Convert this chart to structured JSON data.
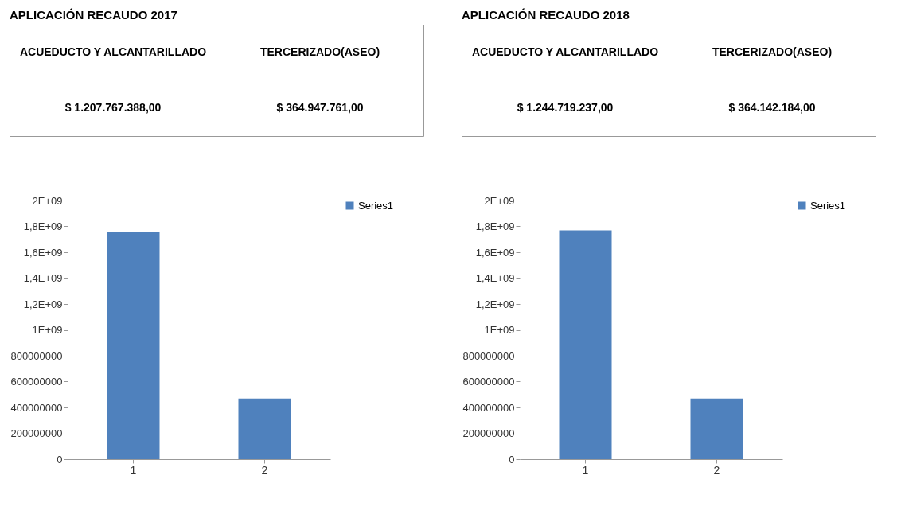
{
  "chart_data": [
    {
      "type": "other",
      "title": "APLICACIÓN RECAUDO 2017",
      "annotations": [
        "ACUEDUCTO Y ALCANTARILLADO",
        "TERCERIZADO(ASEO)",
        "$ 1.207.767.388,00",
        "$ 364.947.761,00"
      ]
    },
    {
      "type": "other",
      "title": "APLICACIÓN RECAUDO 2018",
      "annotations": [
        "ACUEDUCTO Y ALCANTARILLADO",
        "TERCERIZADO(ASEO)",
        "$ 1.244.719.237,00",
        "$ 364.142.184,00"
      ]
    },
    {
      "type": "bar",
      "categories": [
        "1",
        "2"
      ],
      "series": [
        {
          "name": "Series1",
          "color": "#4f81bd",
          "values": [
            1760000000.0,
            470000000.0
          ]
        }
      ],
      "ylim": [
        0,
        2000000000.0
      ],
      "yticks": [
        0,
        200000000,
        400000000,
        600000000,
        800000000,
        {
          "value": 1000000000.0,
          "label": "1E+09"
        },
        {
          "value": 1200000000.0,
          "label": "1,2E+09"
        },
        {
          "value": 1400000000.0,
          "label": "1,4E+09"
        },
        {
          "value": 1600000000.0,
          "label": "1,6E+09"
        },
        {
          "value": 1800000000.0,
          "label": "1,8E+09"
        },
        {
          "value": 2000000000.0,
          "label": "2E+09"
        }
      ],
      "grid": false,
      "legend": "right"
    },
    {
      "type": "bar",
      "categories": [
        "1",
        "2"
      ],
      "series": [
        {
          "name": "Series1",
          "color": "#4f81bd",
          "values": [
            1770000000.0,
            470000000.0
          ]
        }
      ],
      "ylim": [
        0,
        2000000000.0
      ],
      "yticks": [
        0,
        200000000,
        400000000,
        600000000,
        800000000,
        {
          "value": 1000000000.0,
          "label": "1E+09"
        },
        {
          "value": 1200000000.0,
          "label": "1,2E+09"
        },
        {
          "value": 1400000000.0,
          "label": "1,4E+09"
        },
        {
          "value": 1600000000.0,
          "label": "1,6E+09"
        },
        {
          "value": 1800000000.0,
          "label": "1,8E+09"
        },
        {
          "value": 2000000000.0,
          "label": "2E+09"
        }
      ],
      "grid": false,
      "legend": "right"
    }
  ]
}
